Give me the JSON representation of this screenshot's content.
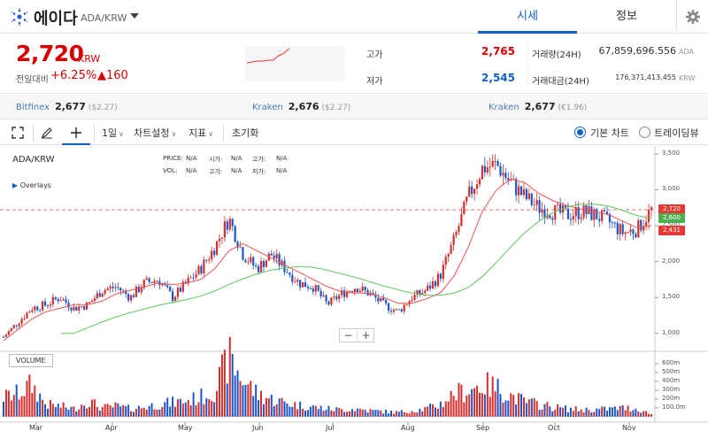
{
  "header": {
    "coin_name": "에이다",
    "pair": "ADA/KRW",
    "tabs": [
      {
        "label": "시세",
        "active": true
      },
      {
        "label": "정보",
        "active": false
      }
    ],
    "logo_icon": "cardano-icon",
    "dropdown_icon": "caret-down-icon",
    "settings_icon": "gear-icon"
  },
  "price": {
    "current": "2,720",
    "unit": "KRW",
    "change_label": "전일대비",
    "change_pct": "+6.25%",
    "change_abs": "▲160",
    "color_up": "#d60000",
    "color_down": "#1261c4"
  },
  "stats": {
    "high_label": "고가",
    "high": "2,765",
    "low_label": "저가",
    "low": "2,545",
    "volume_label": "거래량(24H)",
    "volume": "67,859,696.556",
    "volume_unit": "ADA",
    "amount_label": "거래대금(24H)",
    "amount": "176,371,413,455",
    "amount_unit": "KRW"
  },
  "exchanges": [
    {
      "name": "Bitfinex",
      "price": "2,677",
      "converted": "($2.27)"
    },
    {
      "name": "Kraken",
      "price": "2,676",
      "converted": "($2.27)"
    },
    {
      "name": "Kraken",
      "price": "2,677",
      "converted": "(€1.96)"
    }
  ],
  "toolbar": {
    "fullscreen_icon": "fullscreen-icon",
    "draw_icon": "pencil-icon",
    "crosshair_icon": "crosshair-icon",
    "interval": "1일",
    "chart_settings": "차트설정",
    "indicators": "지표",
    "reset": "초기화",
    "mode_basic": "기본 차트",
    "mode_trading": "트레이딩뷰",
    "mode_selected": "basic"
  },
  "chart_info": {
    "symbol": "ADA/KRW",
    "overlays": "Overlays",
    "fields": [
      {
        "label": "PRICE:",
        "value": "N/A"
      },
      {
        "label": "시가:",
        "value": "N/A"
      },
      {
        "label": "고가:",
        "value": "N/A"
      },
      {
        "label": "종가:",
        "value": "N/A"
      },
      {
        "label": "VOL:",
        "value": "N/A"
      },
      {
        "label": "저가:",
        "value": "N/A"
      },
      {
        "label": "저가:",
        "value": "N/A"
      }
    ],
    "volume_label": "VOLUME",
    "zoom_out": "−",
    "zoom_in": "+"
  },
  "chart_data": {
    "type": "candlestick",
    "symbol": "ADA/KRW",
    "price_axis": {
      "ticks": [
        "3,500",
        "3,000",
        "2,500",
        "2,000",
        "1,500",
        "1,000"
      ],
      "range": [
        800,
        3560
      ]
    },
    "volume_axis": {
      "ticks": [
        "600m",
        "500m",
        "400m",
        "300m",
        "200m",
        "100.0m"
      ],
      "range": [
        0,
        700
      ]
    },
    "x_ticks": [
      "Mar",
      "Apr",
      "May",
      "Jun",
      "Jul",
      "Aug",
      "Sep",
      "Oct",
      "Nov"
    ],
    "price_close_weekly": [
      950,
      1150,
      1350,
      1400,
      1500,
      1350,
      1400,
      1600,
      1650,
      1500,
      1700,
      1750,
      1500,
      1700,
      1900,
      2200,
      2600,
      2100,
      1900,
      2100,
      1900,
      1700,
      1650,
      1400,
      1550,
      1650,
      1550,
      1400,
      1300,
      1500,
      1600,
      1800,
      2300,
      2900,
      3300,
      3350,
      3100,
      2900,
      2750,
      2700,
      2650,
      2700,
      2650,
      2550,
      2400,
      2450,
      2720
    ],
    "ma_short_weekly": [
      900,
      1050,
      1200,
      1300,
      1350,
      1400,
      1400,
      1450,
      1550,
      1600,
      1650,
      1700,
      1680,
      1700,
      1750,
      1900,
      2150,
      2250,
      2150,
      2050,
      1950,
      1850,
      1750,
      1650,
      1580,
      1560,
      1560,
      1500,
      1420,
      1420,
      1480,
      1560,
      1800,
      2200,
      2700,
      3000,
      3150,
      3100,
      2950,
      2850,
      2780,
      2730,
      2700,
      2650,
      2560,
      2470,
      2500
    ],
    "ma_long_weekly": [
      null,
      null,
      null,
      null,
      null,
      1000,
      1080,
      1160,
      1230,
      1290,
      1340,
      1390,
      1430,
      1470,
      1520,
      1590,
      1680,
      1760,
      1830,
      1880,
      1910,
      1930,
      1920,
      1880,
      1830,
      1780,
      1720,
      1660,
      1610,
      1560,
      1530,
      1530,
      1560,
      1640,
      1790,
      1990,
      2200,
      2400,
      2560,
      2680,
      2760,
      2800,
      2800,
      2770,
      2710,
      2640,
      2600
    ],
    "volume_weekly": [
      220,
      260,
      360,
      140,
      120,
      90,
      180,
      100,
      120,
      90,
      110,
      140,
      160,
      180,
      220,
      300,
      660,
      420,
      260,
      200,
      160,
      130,
      110,
      90,
      80,
      90,
      70,
      60,
      50,
      70,
      90,
      140,
      260,
      300,
      360,
      330,
      240,
      170,
      140,
      110,
      90,
      80,
      80,
      90,
      100,
      90,
      30
    ],
    "reference_price": 2720,
    "badges": [
      {
        "label": "2,720",
        "value": 2720,
        "color": "#e53935"
      },
      {
        "label": "2,600",
        "value": 2600,
        "color": "#4caf50"
      },
      {
        "label": "2,431",
        "value": 2431,
        "color": "#e53935"
      }
    ],
    "colors": {
      "up": "#d32f2f",
      "down": "#1e56c9",
      "ma_short": "#ef5350",
      "ma_long": "#5cc95c",
      "ref_line": "#e57373"
    }
  }
}
